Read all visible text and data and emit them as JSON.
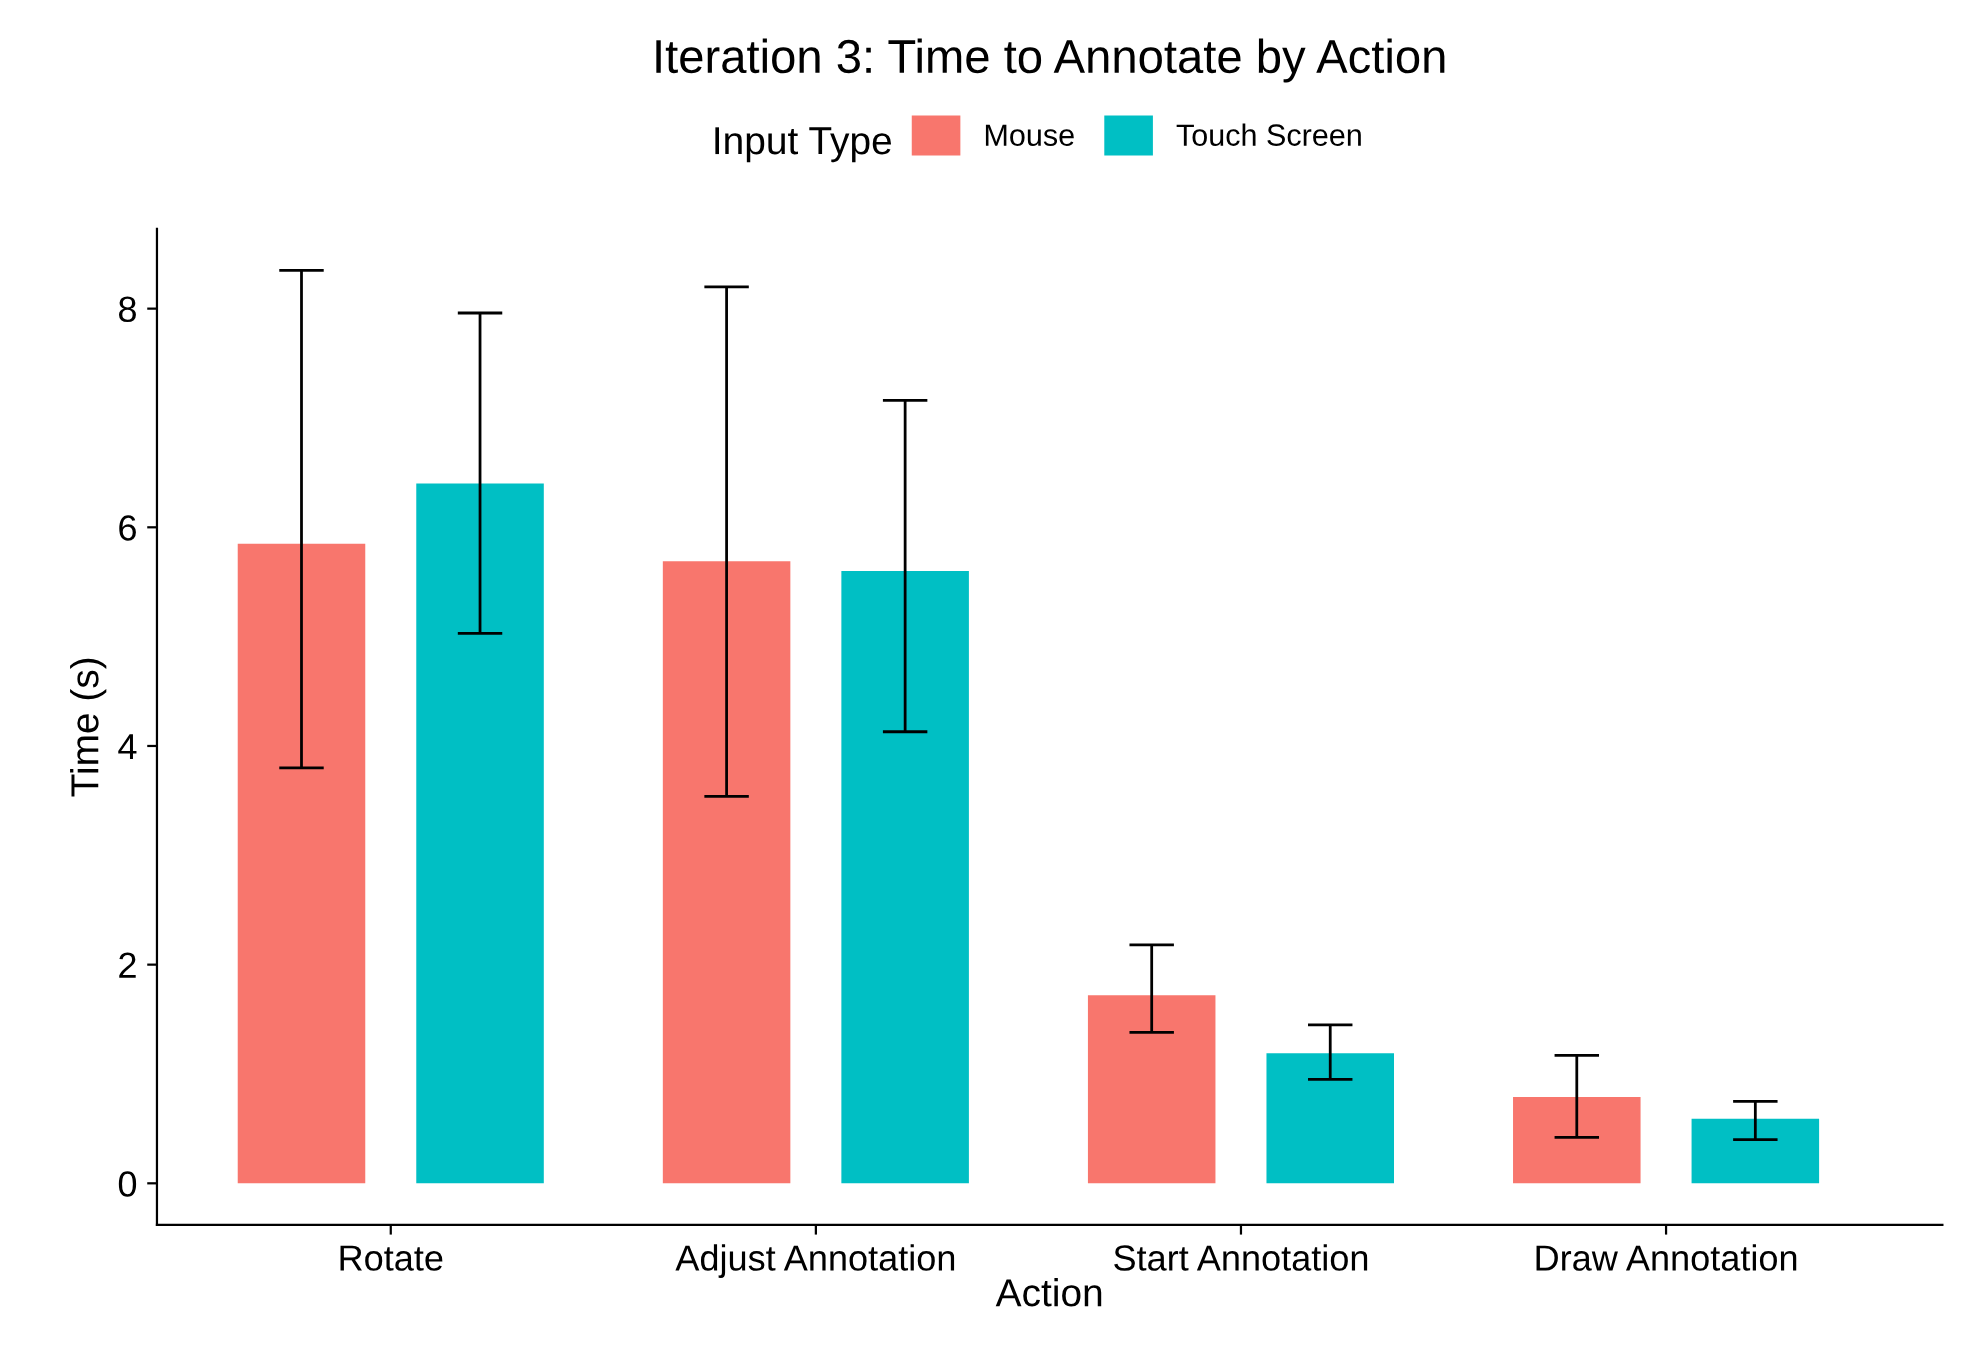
{
  "chart_data": {
    "type": "bar",
    "title": "Iteration 3: Time to Annotate by Action",
    "xlabel": "Action",
    "ylabel": "Time (s)",
    "legend_title": "Input Type",
    "legend": "top",
    "grid": false,
    "categories": [
      "Rotate",
      "Adjust Annotation",
      "Start Annotation",
      "Draw Annotation"
    ],
    "series": [
      {
        "name": "Mouse",
        "color": "#f8766d",
        "values": [
          5.85,
          5.69,
          1.72,
          0.79
        ],
        "errors": [
          [
            3.8,
            8.35
          ],
          [
            3.54,
            8.2
          ],
          [
            1.38,
            2.18
          ],
          [
            0.42,
            1.17
          ]
        ]
      },
      {
        "name": "Touch Screen",
        "color": "#00bfc4",
        "values": [
          6.4,
          5.6,
          1.19,
          0.59
        ],
        "errors": [
          [
            5.03,
            7.96
          ],
          [
            4.13,
            7.16
          ],
          [
            0.95,
            1.45
          ],
          [
            0.4,
            0.75
          ]
        ]
      }
    ],
    "ylim": [
      -0.38,
      8.73
    ],
    "yticks": [
      0,
      2,
      4,
      6,
      8
    ]
  }
}
